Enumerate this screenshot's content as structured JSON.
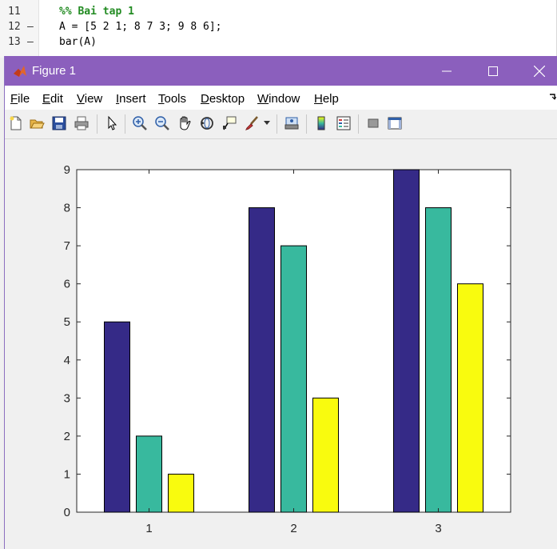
{
  "editor": {
    "lines": [
      {
        "num": "11",
        "dash": "",
        "code": "%% Bai tap 1",
        "type": "comment"
      },
      {
        "num": "12",
        "dash": "–",
        "code": "A = [5 2 1; 8 7 3; 9 8 6];",
        "type": "code"
      },
      {
        "num": "13",
        "dash": "–",
        "code": "bar(A)",
        "type": "code"
      }
    ]
  },
  "window": {
    "title": "Figure 1",
    "controls": {
      "minimize": "—",
      "maximize": "☐",
      "close": "✕"
    }
  },
  "menubar": {
    "items": [
      "File",
      "Edit",
      "View",
      "Insert",
      "Tools",
      "Desktop",
      "Window",
      "Help"
    ]
  },
  "toolbar": {
    "icons": [
      "new-figure-icon",
      "open-file-icon",
      "save-icon",
      "print-icon",
      "select-arrow-icon",
      "zoom-in-icon",
      "zoom-out-icon",
      "pan-hand-icon",
      "rotate-3d-icon",
      "data-cursor-icon",
      "brush-icon",
      "brush-dropdown-icon",
      "link-plot-icon",
      "colorbar-icon",
      "legend-icon",
      "hide-plot-tools-icon",
      "show-plot-tools-icon"
    ]
  },
  "colors": {
    "series1": "#352a87",
    "series2": "#38b99e",
    "series3": "#f9fb0e",
    "titlebar": "#8b5fbd"
  },
  "chart_data": {
    "type": "bar",
    "categories": [
      "1",
      "2",
      "3"
    ],
    "series": [
      {
        "values": [
          5,
          8,
          9
        ]
      },
      {
        "values": [
          2,
          7,
          8
        ]
      },
      {
        "values": [
          1,
          3,
          6
        ]
      }
    ],
    "ylim": [
      0,
      9
    ],
    "yticks": [
      "0",
      "1",
      "2",
      "3",
      "4",
      "5",
      "6",
      "7",
      "8",
      "9"
    ],
    "title": "",
    "xlabel": "",
    "ylabel": "",
    "grid": false,
    "legend": "none"
  }
}
